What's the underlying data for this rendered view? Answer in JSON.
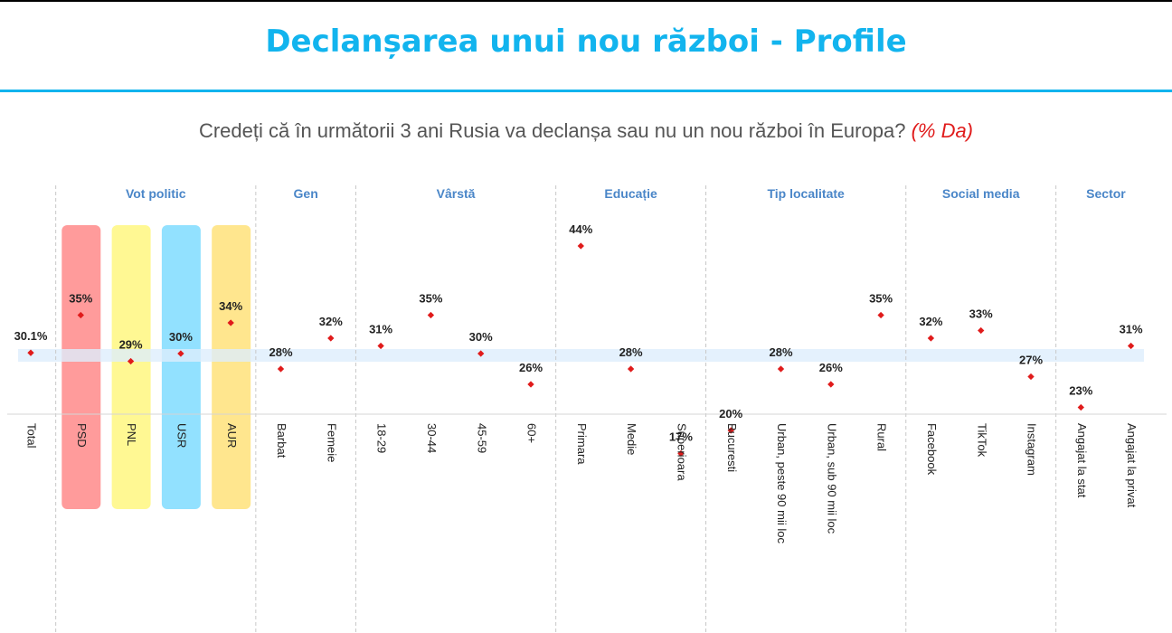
{
  "title": "Declanșarea unui nou război - Profile",
  "subtitle": {
    "question": "Credeți că în următorii 3 ani Rusia va declanșa sau nu un nou război în Europa?",
    "note": "(% Da)"
  },
  "colors": {
    "title": "#12b4ee",
    "group_label": "#4a86c8",
    "marker": "#e01b1b",
    "highlight_band": "#ddeefc",
    "PSD": "#ff8a8a",
    "PNL": "#fff780",
    "USR": "#7fdcff",
    "AUR": "#ffe27a"
  },
  "chart_data": {
    "type": "scatter",
    "title": "Declanșarea unui nou război - Profile",
    "ylabel": "",
    "reference_value": 30.1,
    "groups": [
      {
        "name": "",
        "categories": [
          "Total"
        ],
        "values": [
          30.1
        ],
        "labels": [
          "30.1%"
        ]
      },
      {
        "name": "Vot politic",
        "categories": [
          "PSD",
          "PNL",
          "USR",
          "AUR"
        ],
        "values": [
          35,
          29,
          30,
          34
        ],
        "labels": [
          "35%",
          "29%",
          "30%",
          "34%"
        ]
      },
      {
        "name": "Gen",
        "categories": [
          "Barbat",
          "Femeie"
        ],
        "values": [
          28,
          32
        ],
        "labels": [
          "28%",
          "32%"
        ]
      },
      {
        "name": "Vârstă",
        "categories": [
          "18-29",
          "30-44",
          "45-59",
          "60+"
        ],
        "values": [
          31,
          35,
          30,
          26
        ],
        "labels": [
          "31%",
          "35%",
          "30%",
          "26%"
        ]
      },
      {
        "name": "Educație",
        "categories": [
          "Primara",
          "Medie",
          "Superioara"
        ],
        "values": [
          44,
          28,
          17
        ],
        "labels": [
          "44%",
          "28%",
          "17%"
        ]
      },
      {
        "name": "Tip localitate",
        "categories": [
          "Bucuresti",
          "Urban, peste 90 mii loc",
          "Urban, sub 90 mii loc",
          "Rural"
        ],
        "values": [
          20,
          28,
          26,
          35
        ],
        "labels": [
          "20%",
          "28%",
          "26%",
          "35%"
        ]
      },
      {
        "name": "Social media",
        "categories": [
          "Facebook",
          "TikTok",
          "Instagram"
        ],
        "values": [
          32,
          33,
          27
        ],
        "labels": [
          "32%",
          "33%",
          "27%"
        ]
      },
      {
        "name": "Sector",
        "categories": [
          "Angajat la stat",
          "Angajat la privat"
        ],
        "values": [
          23,
          31
        ],
        "labels": [
          "23%",
          "31%"
        ]
      }
    ],
    "highlighted_categories": [
      "PSD",
      "PNL",
      "USR",
      "AUR"
    ],
    "grid": false,
    "legend": "none"
  }
}
